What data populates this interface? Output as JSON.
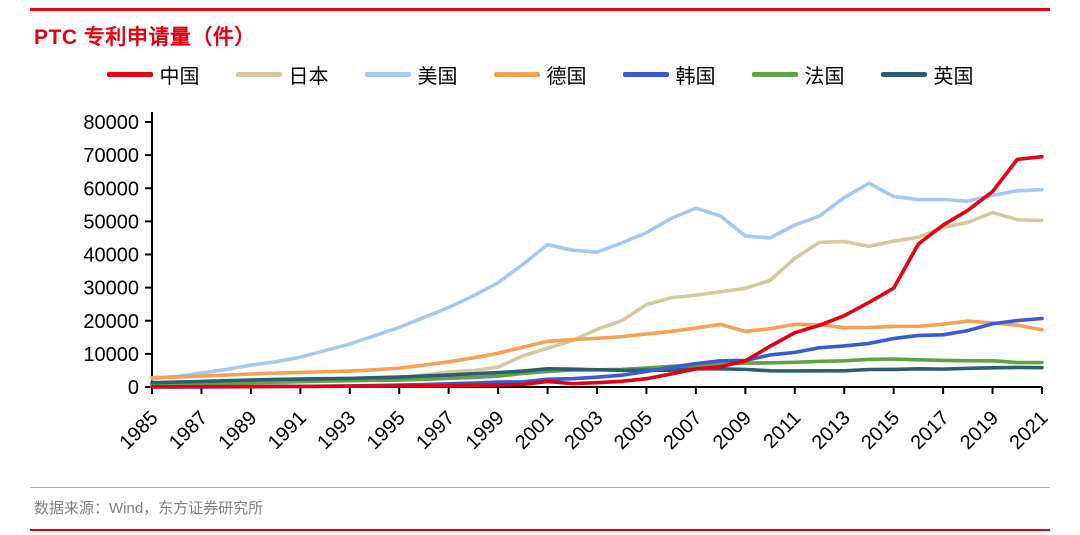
{
  "header": {
    "title": "PTC 专利申请量（件）"
  },
  "footer": {
    "source": "数据来源：Wind，东方证券研究所"
  },
  "colors": {
    "accent_red": "#e60012",
    "rule_gray": "#b3b3b3",
    "axis": "#000000",
    "source_text": "#808080"
  },
  "chart_data": {
    "type": "line",
    "title": "PTC 专利申请量（件）",
    "xlabel": "",
    "ylabel": "",
    "ylim": [
      0,
      80000
    ],
    "ytick_step": 10000,
    "xtick_step": 2,
    "grid": false,
    "legend_position": "top",
    "x": [
      1985,
      1986,
      1987,
      1988,
      1989,
      1990,
      1991,
      1992,
      1993,
      1994,
      1995,
      1996,
      1997,
      1998,
      1999,
      2000,
      2001,
      2002,
      2003,
      2004,
      2005,
      2006,
      2007,
      2008,
      2009,
      2010,
      2011,
      2012,
      2013,
      2014,
      2015,
      2016,
      2017,
      2018,
      2019,
      2020,
      2021
    ],
    "series": [
      {
        "name": "中国",
        "color": "#e60012",
        "values": [
          50,
          60,
          80,
          100,
          120,
          150,
          180,
          200,
          250,
          280,
          300,
          350,
          400,
          500,
          600,
          780,
          1670,
          1020,
          1300,
          1710,
          2500,
          3940,
          5460,
          6120,
          7900,
          12300,
          16400,
          18620,
          21520,
          25540,
          29850,
          43170,
          48880,
          53350,
          58990,
          68720,
          69540
        ]
      },
      {
        "name": "日本",
        "color": "#d5c9a3",
        "values": [
          300,
          400,
          500,
          600,
          800,
          1200,
          1600,
          1900,
          2200,
          2500,
          2700,
          3600,
          4500,
          5000,
          6000,
          9400,
          11700,
          14000,
          17400,
          20000,
          24870,
          26940,
          27740,
          28760,
          29800,
          32150,
          38870,
          43660,
          43910,
          42460,
          44050,
          45210,
          48210,
          49700,
          52660,
          50520,
          50260
        ]
      },
      {
        "name": "美国",
        "color": "#a8c8f0",
        "values": [
          2500,
          3200,
          4200,
          5300,
          6600,
          7600,
          9000,
          11000,
          13000,
          15500,
          18000,
          21000,
          24000,
          27500,
          31500,
          37000,
          43000,
          41300,
          40700,
          43500,
          46600,
          50900,
          54000,
          51600,
          45600,
          45000,
          48900,
          51600,
          57200,
          61500,
          57500,
          56600,
          56600,
          56100,
          57840,
          59230,
          59570
        ]
      },
      {
        "name": "德国",
        "color": "#f8a055",
        "values": [
          2800,
          3000,
          3300,
          3600,
          3900,
          4200,
          4400,
          4600,
          4800,
          5200,
          5700,
          6600,
          7600,
          8800,
          10200,
          12000,
          13800,
          14300,
          14700,
          15200,
          16000,
          16800,
          17800,
          18900,
          16800,
          17600,
          18900,
          18800,
          17900,
          18000,
          18300,
          18300,
          18950,
          19900,
          19350,
          18640,
          17320
        ]
      },
      {
        "name": "韩国",
        "color": "#3c5bd2",
        "values": [
          10,
          20,
          30,
          50,
          80,
          120,
          180,
          250,
          320,
          430,
          590,
          750,
          960,
          1200,
          1500,
          1580,
          2320,
          2520,
          2950,
          3560,
          4690,
          5940,
          7060,
          7900,
          8030,
          9670,
          10450,
          11850,
          12390,
          13160,
          14630,
          15560,
          15750,
          17010,
          19090,
          20060,
          20680
        ]
      },
      {
        "name": "法国",
        "color": "#61a148",
        "values": [
          700,
          800,
          950,
          1100,
          1300,
          1500,
          1650,
          1800,
          1900,
          2000,
          2100,
          2300,
          2600,
          2900,
          3300,
          4100,
          4700,
          5100,
          5200,
          5300,
          5740,
          6250,
          6560,
          7000,
          7240,
          7290,
          7440,
          7740,
          7900,
          8320,
          8440,
          8210,
          8010,
          7920,
          7930,
          7380,
          7380
        ]
      },
      {
        "name": "英国",
        "color": "#2c5e70",
        "values": [
          1300,
          1500,
          1700,
          1900,
          2100,
          2300,
          2400,
          2500,
          2600,
          2800,
          3000,
          3300,
          3600,
          4000,
          4350,
          4800,
          5500,
          5380,
          5210,
          5030,
          5080,
          5090,
          5490,
          5470,
          5320,
          4890,
          4850,
          4900,
          4890,
          5280,
          5310,
          5500,
          5400,
          5640,
          5790,
          5910,
          5840
        ]
      }
    ]
  }
}
